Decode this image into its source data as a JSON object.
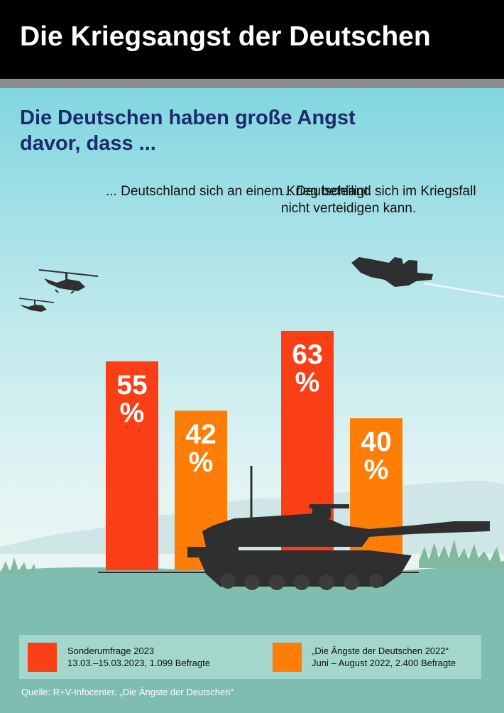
{
  "title": "Die Kriegsangst der Deutschen",
  "subtitle": "Die Deutschen haben große Angst davor, dass ...",
  "chart_data": {
    "type": "bar",
    "categories": [
      "... Deutschland sich an einem Krieg beteiligt.",
      "... Deutschland sich im Kriegsfall nicht verteidigen kann."
    ],
    "series": [
      {
        "name": "Sonderumfrage 2023",
        "values": [
          55,
          63
        ],
        "color": "#fa3e16"
      },
      {
        "name": "„Die Ängste der Deutschen 2022“",
        "values": [
          42,
          40
        ],
        "color": "#fd7d07"
      }
    ],
    "value_labels": [
      [
        "55 %",
        "63 %"
      ],
      [
        "42 %",
        "40 %"
      ]
    ],
    "unit": "%",
    "ylim": [
      0,
      100
    ],
    "grid": false,
    "legend": "bottom"
  },
  "legend": [
    {
      "title": "Sonderumfrage 2023",
      "detail": "13.03.–15.03.2023, 1.099 Befragte",
      "color": "#fa3e16"
    },
    {
      "title": "„Die Ängste der Deutschen 2022“",
      "detail": "Juni – August 2022, 2.400 Befragte",
      "color": "#fd7d07"
    }
  ],
  "source": "Quelle: R+V-Infocenter, „Die Ängste der Deutschen“",
  "icons": [
    "helicopter-icon",
    "fighter-jet-icon",
    "tank-icon"
  ],
  "colors": {
    "header": "#000000",
    "title_text": "#ffffff",
    "subtitle_text": "#1c2b6b",
    "ground": "#7fbdb1",
    "legend_box": "#a5d6cc"
  }
}
